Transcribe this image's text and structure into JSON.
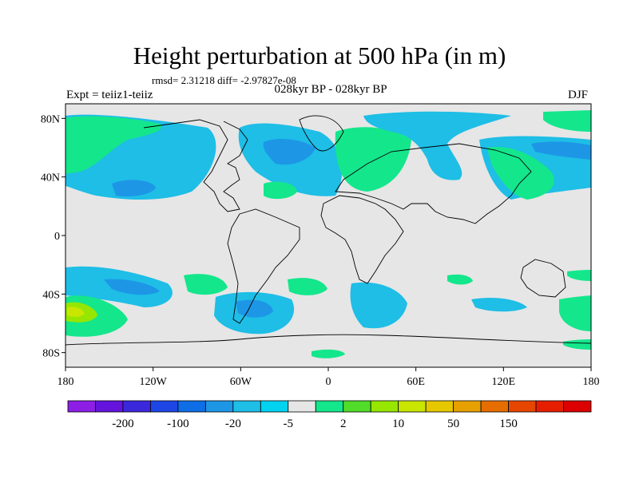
{
  "title": "Height perturbation at 500 hPa (in m)",
  "stats": "rmsd= 2.31218 diff= -2.97827e-08",
  "periods": "028kyr BP - 028kyr BP",
  "experiment": "Expt = teiiz1-teiiz",
  "season": "DJF",
  "map": {
    "lat_range": [
      -90,
      90
    ],
    "lon_range": [
      -180,
      180
    ],
    "lat_ticks": [
      {
        "value": 80,
        "label": "80N"
      },
      {
        "value": 40,
        "label": "40N"
      },
      {
        "value": 0,
        "label": "0"
      },
      {
        "value": -40,
        "label": "40S"
      },
      {
        "value": -80,
        "label": "80S"
      }
    ],
    "lon_ticks": [
      {
        "value": -180,
        "label": "180"
      },
      {
        "value": -120,
        "label": "120W"
      },
      {
        "value": -60,
        "label": "60W"
      },
      {
        "value": 0,
        "label": "0"
      },
      {
        "value": 60,
        "label": "60E"
      },
      {
        "value": 120,
        "label": "120E"
      },
      {
        "value": 180,
        "label": "180"
      }
    ]
  },
  "colorbar": {
    "colors": [
      "#8c1ee6",
      "#6414dc",
      "#3c28dc",
      "#1e46e6",
      "#0f6ee6",
      "#1e96e6",
      "#1ebee6",
      "#00d2f0",
      "#e6e6e6",
      "#14e68c",
      "#50dc28",
      "#96e600",
      "#c8e600",
      "#e6c800",
      "#e6a000",
      "#e66e00",
      "#e64600",
      "#e61e00",
      "#dc0000"
    ],
    "labels": [
      {
        "text": "-200",
        "after_box": 2
      },
      {
        "text": "-100",
        "after_box": 4
      },
      {
        "text": "-20",
        "after_box": 6
      },
      {
        "text": "-5",
        "after_box": 8
      },
      {
        "text": "2",
        "after_box": 10
      },
      {
        "text": "10",
        "after_box": 12
      },
      {
        "text": "50",
        "after_box": 14
      },
      {
        "text": "150",
        "after_box": 16
      }
    ]
  }
}
